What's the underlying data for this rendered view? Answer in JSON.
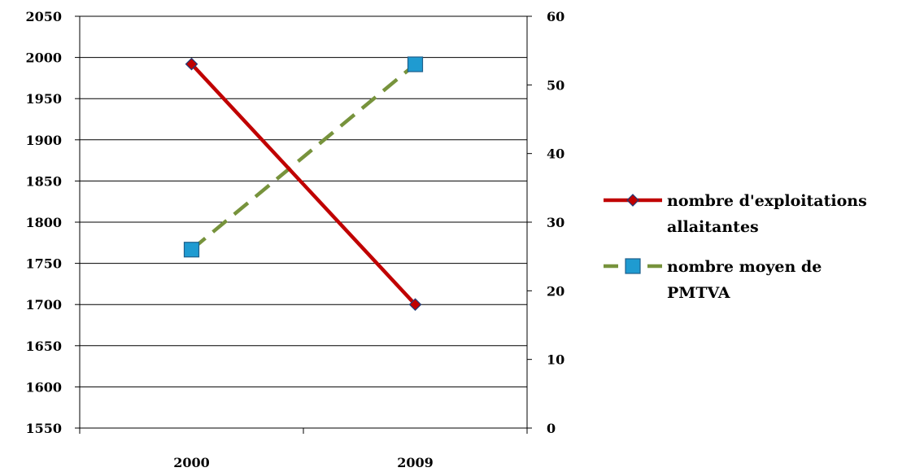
{
  "chart_data": {
    "type": "line",
    "categories": [
      "2000",
      "2009"
    ],
    "series": [
      {
        "name": "nombre d'exploitations allaitantes",
        "axis": "left",
        "values": [
          1992,
          1700
        ],
        "color": "#C00000",
        "line_style": "solid",
        "marker": "diamond",
        "marker_color": "#C00000"
      },
      {
        "name": "nombre moyen de PMTVA",
        "axis": "right",
        "values": [
          26,
          53
        ],
        "color": "#77933C",
        "line_style": "dashed",
        "marker": "square",
        "marker_color": "#1F9BD1"
      }
    ],
    "y_left": {
      "min": 1550,
      "max": 2050,
      "ticks": [
        "1550",
        "1600",
        "1650",
        "1700",
        "1750",
        "1800",
        "1850",
        "1900",
        "1950",
        "2000",
        "2050"
      ]
    },
    "y_right": {
      "min": 0,
      "max": 60,
      "ticks": [
        "0",
        "10",
        "20",
        "30",
        "40",
        "50",
        "60"
      ]
    },
    "grid": true,
    "legend_position": "right",
    "legend_lines": [
      [
        "nombre d'exploitations",
        "allaitantes"
      ],
      [
        "nombre moyen de",
        "PMTVA"
      ]
    ]
  }
}
